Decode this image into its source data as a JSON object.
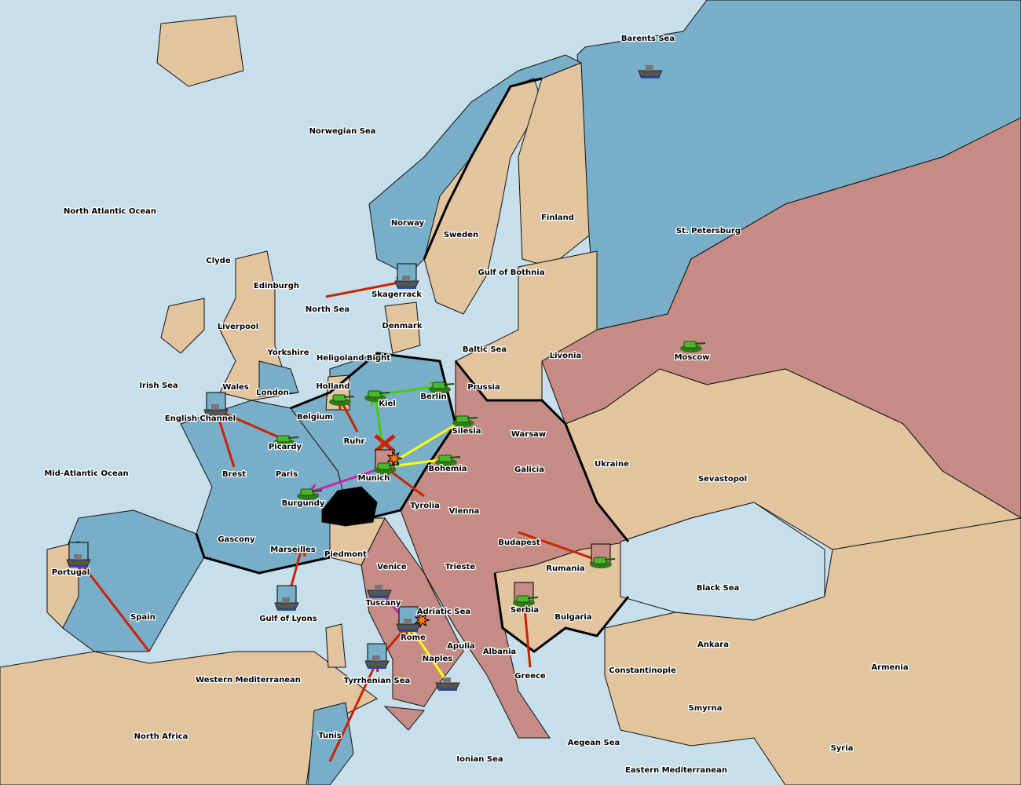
{
  "colors": {
    "sea": "#c6dfea",
    "blue_power": "#79aec8",
    "neutral": "#e2c59e",
    "red_power": "#c48c84",
    "switzerland": "#000000"
  },
  "provinces": [
    "Barents Sea",
    "Norwegian Sea",
    "North Atlantic Ocean",
    "Norway",
    "Sweden",
    "Finland",
    "St. Petersburg",
    "Clyde",
    "Edinburgh",
    "North Sea",
    "Skagerrack",
    "Gulf of Bothnia",
    "Liverpool",
    "Yorkshire",
    "Denmark",
    "Baltic Sea",
    "Livonia",
    "Moscow",
    "Heligoland Bight",
    "Irish Sea",
    "Wales",
    "London",
    "Holland",
    "Kiel",
    "Berlin",
    "Prussia",
    "English Channel",
    "Belgium",
    "Silesia",
    "Warsaw",
    "Ruhr",
    "Picardy",
    "Brest",
    "Paris",
    "Munich",
    "Bohemia",
    "Galicia",
    "Ukraine",
    "Sevastopol",
    "Mid-Atlantic Ocean",
    "Burgundy",
    "Tyrolia",
    "Vienna",
    "Gascony",
    "Marseilles",
    "Piedmont",
    "Budapest",
    "Venice",
    "Trieste",
    "Rumania",
    "Portugal",
    "Spain",
    "Gulf of Lyons",
    "Tuscany",
    "Adriatic Sea",
    "Serbia",
    "Bulgaria",
    "Black Sea",
    "Rome",
    "Apulia",
    "Albania",
    "Naples",
    "Tyrrhenian Sea",
    "Greece",
    "Constantinople",
    "Ankara",
    "Armenia",
    "Western Mediterranean",
    "Smyrna",
    "North Africa",
    "Tunis",
    "Aegean Sea",
    "Ionian Sea",
    "Eastern Mediterranean",
    "Syria"
  ],
  "units": [
    {
      "type": "fleet",
      "province": "Barents Sea",
      "color": "#79aec8",
      "boxed": false
    },
    {
      "type": "fleet",
      "province": "Skagerrack",
      "color": "#79aec8",
      "boxed": true
    },
    {
      "type": "fleet",
      "province": "English Channel",
      "color": "#79aec8",
      "boxed": true
    },
    {
      "type": "fleet",
      "province": "Portugal",
      "color": "#79aec8",
      "boxed": true
    },
    {
      "type": "fleet",
      "province": "Gulf of Lyons",
      "color": "#79aec8",
      "boxed": true
    },
    {
      "type": "fleet",
      "province": "Tuscany",
      "color": "#79aec8",
      "boxed": false
    },
    {
      "type": "fleet",
      "province": "Rome",
      "color": "#79aec8",
      "boxed": true
    },
    {
      "type": "fleet",
      "province": "Tyrrhenian Sea",
      "color": "#79aec8",
      "boxed": true
    },
    {
      "type": "fleet",
      "province": "Naples",
      "color": "#79aec8",
      "boxed": false
    },
    {
      "type": "army",
      "province": "Holland",
      "boxed": false
    },
    {
      "type": "army",
      "province": "Kiel",
      "boxed": false
    },
    {
      "type": "army",
      "province": "Berlin",
      "boxed": false
    },
    {
      "type": "army",
      "province": "Silesia",
      "boxed": false
    },
    {
      "type": "army",
      "province": "Bohemia",
      "boxed": false
    },
    {
      "type": "army",
      "province": "Munich",
      "color": "#c48c84",
      "boxed": true
    },
    {
      "type": "army",
      "province": "Picardy",
      "boxed": false
    },
    {
      "type": "army",
      "province": "Burgundy",
      "boxed": false
    },
    {
      "type": "army",
      "province": "Moscow",
      "boxed": false
    },
    {
      "type": "army",
      "province": "Rumania",
      "color": "#c48c84",
      "boxed": true
    },
    {
      "type": "army",
      "province": "Serbia",
      "color": "#c48c84",
      "boxed": true
    }
  ],
  "orders": [
    {
      "from": "North Sea",
      "to": "Skagerrack",
      "color": "#cc2200"
    },
    {
      "from": "Brest",
      "to": "English Channel",
      "color": "#cc2200"
    },
    {
      "from": "Picardy",
      "to": "English Channel",
      "color": "#cc2200"
    },
    {
      "from": "Spain",
      "to": "Portugal",
      "color": "#cc2200"
    },
    {
      "from": "Gulf of Lyons",
      "to": "Marseilles",
      "color": "#cc2200"
    },
    {
      "from": "Ruhr",
      "to": "Holland",
      "color": "#cc2200"
    },
    {
      "from": "Tyrolia",
      "to": "Munich",
      "color": "#cc2200"
    },
    {
      "from": "Budapest",
      "to": "Rumania",
      "color": "#cc2200"
    },
    {
      "from": "Greece",
      "to": "Serbia",
      "color": "#cc2200"
    },
    {
      "from": "Tyrrhenian Sea",
      "to": "Rome",
      "color": "#cc2200"
    },
    {
      "from": "Tunis",
      "to": "Tyrrhenian Sea",
      "color": "#cc2200"
    },
    {
      "from": "Munich",
      "to": "Kiel",
      "color": "#44cc00"
    },
    {
      "from": "Kiel",
      "to": "Berlin",
      "color": "#44cc00"
    },
    {
      "from": "Silesia",
      "to": "Munich",
      "color": "#ffff00"
    },
    {
      "from": "Bohemia",
      "to": "Munich",
      "color": "#ffff00"
    },
    {
      "from": "Naples",
      "to": "Rome",
      "color": "#ffff00"
    },
    {
      "from": "Munich",
      "to": "Burgundy",
      "color": "#cc22aa"
    },
    {
      "from": "Tuscany",
      "to": "Rome",
      "color": "#cc22aa"
    }
  ],
  "battles": [
    "Munich",
    "Rome"
  ],
  "failed_orders": [
    "Ruhr"
  ]
}
